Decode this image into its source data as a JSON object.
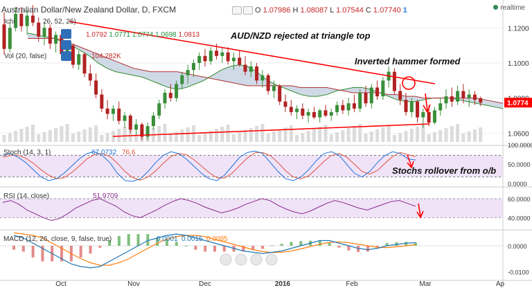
{
  "header": {
    "symbol_line": "Australian Dollar/New Zealand Dollar, D, FXCM",
    "o_label": "O",
    "o_value": "1.07986",
    "h_label": "H",
    "h_value": "1.08087",
    "l_label": "L",
    "l_value": "1.07544",
    "c_label": "C",
    "c_value": "1.07740",
    "badge": "1",
    "ichimoku_label": "Ichi",
    "ichimoku_params": "26, 52, 26)",
    "ichimoku_values": [
      "1.0792",
      "1.0771",
      "1.0774",
      "1.0698",
      "1.0813"
    ],
    "volume_label": "Vol (20, false)",
    "volume_value": "104.282K",
    "realtime": "realtime"
  },
  "annotations": {
    "title": "AUD/NZD rejected at triangle top",
    "hammer": "Inverted hammer formed",
    "stochs": "Stochs rollover from o/b"
  },
  "colors": {
    "up": "#3a8f3a",
    "down": "#b22222",
    "annotation": "#ff0000",
    "cloud_fill": "#c8d3e3",
    "stoch_k": "#1e6fd9",
    "stoch_d": "#e0523a",
    "rsi": "#8a2a8a",
    "macd": "#1f77b4",
    "signal": "#ff7f0e",
    "panel_fill": "#ead7f5"
  },
  "chart_data": {
    "type": "candlestick",
    "x_tick_labels": [
      "Oct",
      "Nov",
      "Dec",
      "2016",
      "Feb",
      "Mar",
      "Ap"
    ],
    "price_axis": [
      1.12,
      1.1,
      1.08,
      1.06
    ],
    "last_price": "1.0774",
    "ohlc": [
      [
        1.122,
        1.129,
        1.105,
        1.108
      ],
      [
        1.108,
        1.123,
        1.106,
        1.12
      ],
      [
        1.12,
        1.132,
        1.118,
        1.128
      ],
      [
        1.128,
        1.132,
        1.118,
        1.121
      ],
      [
        1.121,
        1.13,
        1.116,
        1.127
      ],
      [
        1.127,
        1.133,
        1.121,
        1.123
      ],
      [
        1.123,
        1.126,
        1.112,
        1.115
      ],
      [
        1.115,
        1.123,
        1.11,
        1.12
      ],
      [
        1.12,
        1.122,
        1.108,
        1.111
      ],
      [
        1.111,
        1.118,
        1.106,
        1.116
      ],
      [
        1.116,
        1.117,
        1.103,
        1.105
      ],
      [
        1.105,
        1.112,
        1.102,
        1.11
      ],
      [
        1.11,
        1.111,
        1.097,
        1.099
      ],
      [
        1.099,
        1.107,
        1.096,
        1.105
      ],
      [
        1.105,
        1.106,
        1.092,
        1.094
      ],
      [
        1.094,
        1.099,
        1.087,
        1.09
      ],
      [
        1.09,
        1.094,
        1.08,
        1.082
      ],
      [
        1.082,
        1.085,
        1.072,
        1.074
      ],
      [
        1.074,
        1.079,
        1.068,
        1.071
      ],
      [
        1.071,
        1.076,
        1.067,
        1.074
      ],
      [
        1.074,
        1.078,
        1.065,
        1.067
      ],
      [
        1.067,
        1.072,
        1.063,
        1.07
      ],
      [
        1.07,
        1.071,
        1.06,
        1.062
      ],
      [
        1.062,
        1.068,
        1.059,
        1.065
      ],
      [
        1.065,
        1.066,
        1.056,
        1.058
      ],
      [
        1.058,
        1.066,
        1.056,
        1.064
      ],
      [
        1.064,
        1.072,
        1.062,
        1.07
      ],
      [
        1.07,
        1.079,
        1.068,
        1.077
      ],
      [
        1.077,
        1.085,
        1.074,
        1.083
      ],
      [
        1.083,
        1.088,
        1.078,
        1.08
      ],
      [
        1.08,
        1.09,
        1.078,
        1.088
      ],
      [
        1.088,
        1.095,
        1.085,
        1.093
      ],
      [
        1.093,
        1.099,
        1.088,
        1.096
      ],
      [
        1.096,
        1.102,
        1.092,
        1.1
      ],
      [
        1.1,
        1.106,
        1.096,
        1.104
      ],
      [
        1.104,
        1.108,
        1.098,
        1.101
      ],
      [
        1.101,
        1.109,
        1.099,
        1.107
      ],
      [
        1.107,
        1.111,
        1.102,
        1.104
      ],
      [
        1.104,
        1.109,
        1.1,
        1.106
      ],
      [
        1.106,
        1.109,
        1.099,
        1.101
      ],
      [
        1.101,
        1.106,
        1.096,
        1.103
      ],
      [
        1.103,
        1.107,
        1.098,
        1.099
      ],
      [
        1.099,
        1.104,
        1.093,
        1.095
      ],
      [
        1.095,
        1.101,
        1.092,
        1.098
      ],
      [
        1.098,
        1.1,
        1.088,
        1.09
      ],
      [
        1.09,
        1.096,
        1.086,
        1.093
      ],
      [
        1.093,
        1.094,
        1.082,
        1.084
      ],
      [
        1.084,
        1.09,
        1.08,
        1.087
      ],
      [
        1.087,
        1.088,
        1.076,
        1.078
      ],
      [
        1.078,
        1.082,
        1.072,
        1.075
      ],
      [
        1.075,
        1.079,
        1.07,
        1.072
      ],
      [
        1.072,
        1.076,
        1.068,
        1.074
      ],
      [
        1.074,
        1.077,
        1.068,
        1.07
      ],
      [
        1.07,
        1.074,
        1.066,
        1.072
      ],
      [
        1.072,
        1.075,
        1.068,
        1.069
      ],
      [
        1.069,
        1.074,
        1.066,
        1.073
      ],
      [
        1.073,
        1.076,
        1.069,
        1.07
      ],
      [
        1.07,
        1.074,
        1.067,
        1.072
      ],
      [
        1.072,
        1.078,
        1.07,
        1.076
      ],
      [
        1.076,
        1.079,
        1.071,
        1.073
      ],
      [
        1.073,
        1.08,
        1.07,
        1.077
      ],
      [
        1.077,
        1.082,
        1.072,
        1.074
      ],
      [
        1.074,
        1.085,
        1.072,
        1.083
      ],
      [
        1.083,
        1.087,
        1.075,
        1.077
      ],
      [
        1.077,
        1.088,
        1.074,
        1.086
      ],
      [
        1.086,
        1.09,
        1.079,
        1.081
      ],
      [
        1.081,
        1.092,
        1.079,
        1.09
      ],
      [
        1.09,
        1.098,
        1.086,
        1.095
      ],
      [
        1.095,
        1.097,
        1.082,
        1.084
      ],
      [
        1.084,
        1.088,
        1.076,
        1.079
      ],
      [
        1.079,
        1.083,
        1.07,
        1.072
      ],
      [
        1.072,
        1.08,
        1.069,
        1.078
      ],
      [
        1.078,
        1.079,
        1.066,
        1.069
      ],
      [
        1.069,
        1.074,
        1.063,
        1.072
      ],
      [
        1.072,
        1.076,
        1.064,
        1.066
      ],
      [
        1.066,
        1.075,
        1.065,
        1.073
      ],
      [
        1.073,
        1.08,
        1.07,
        1.077
      ],
      [
        1.077,
        1.085,
        1.074,
        1.081
      ],
      [
        1.081,
        1.086,
        1.075,
        1.078
      ],
      [
        1.078,
        1.087,
        1.076,
        1.084
      ],
      [
        1.084,
        1.088,
        1.077,
        1.08
      ],
      [
        1.08,
        1.085,
        1.075,
        1.082
      ],
      [
        1.082,
        1.084,
        1.076,
        1.079
      ],
      [
        1.0799,
        1.0809,
        1.0754,
        1.0774
      ]
    ],
    "kumo_span_a": [
      1.117,
      1.116,
      1.115,
      1.114,
      1.112,
      1.11,
      1.107,
      1.104,
      1.1,
      1.097,
      1.095,
      1.094,
      1.093,
      1.092,
      1.09,
      1.088,
      1.086,
      1.085,
      1.086,
      1.088,
      1.09,
      1.093,
      1.096,
      1.098,
      1.099,
      1.098,
      1.095,
      1.091,
      1.088,
      1.086,
      1.084,
      1.082,
      1.081,
      1.081,
      1.082,
      1.084,
      1.085,
      1.086,
      1.086,
      1.085,
      1.083,
      1.081,
      1.079,
      1.078,
      1.078,
      1.079,
      1.08,
      1.08,
      1.08,
      1.079,
      1.078,
      1.077,
      1.076,
      1.075,
      1.074
    ],
    "kumo_span_b": [
      1.114,
      1.114,
      1.114,
      1.114,
      1.113,
      1.111,
      1.109,
      1.107,
      1.105,
      1.103,
      1.101,
      1.099,
      1.097,
      1.096,
      1.095,
      1.095,
      1.095,
      1.095,
      1.094,
      1.093,
      1.092,
      1.091,
      1.09,
      1.089,
      1.088,
      1.087,
      1.087,
      1.087,
      1.087,
      1.087,
      1.087,
      1.086,
      1.086,
      1.086,
      1.086,
      1.085,
      1.084,
      1.083,
      1.083,
      1.083,
      1.083,
      1.082,
      1.082,
      1.081,
      1.081,
      1.08,
      1.08,
      1.08,
      1.08,
      1.08,
      1.08,
      1.08,
      1.079,
      1.078,
      1.077
    ],
    "stoch": {
      "label": "Stoch (14, 3, 1)",
      "k_value": "67.0732",
      "d_value": "76.6",
      "axis": [
        "100.0000",
        "50.0000",
        "0.0000"
      ],
      "k": [
        80,
        85,
        75,
        60,
        40,
        20,
        10,
        15,
        30,
        50,
        70,
        85,
        90,
        80,
        60,
        30,
        10,
        8,
        15,
        35,
        60,
        80,
        90,
        85,
        70,
        50,
        30,
        15,
        10,
        25,
        50,
        75,
        88,
        92,
        85,
        60,
        35,
        15,
        10,
        20,
        40,
        65,
        85,
        90,
        80,
        55,
        30,
        20,
        35,
        60,
        80,
        90,
        85,
        70,
        67
      ],
      "d": [
        75,
        80,
        80,
        72,
        58,
        40,
        25,
        15,
        18,
        32,
        50,
        70,
        82,
        85,
        77,
        58,
        35,
        18,
        11,
        20,
        37,
        58,
        77,
        85,
        82,
        68,
        50,
        32,
        18,
        17,
        30,
        52,
        73,
        87,
        88,
        79,
        60,
        37,
        20,
        15,
        23,
        42,
        63,
        80,
        85,
        75,
        55,
        35,
        28,
        38,
        58,
        77,
        88,
        82,
        77
      ]
    },
    "rsi": {
      "label": "RSI (14, close)",
      "value": "51.9709",
      "axis": [
        "60.0000",
        "40.0000"
      ],
      "values": [
        56,
        58,
        54,
        48,
        44,
        40,
        37,
        39,
        44,
        50,
        54,
        58,
        60,
        56,
        52,
        46,
        42,
        40,
        44,
        48,
        53,
        57,
        60,
        58,
        55,
        51,
        48,
        45,
        47,
        50,
        54,
        57,
        60,
        58,
        53,
        49,
        46,
        44,
        47,
        51,
        55,
        58,
        56,
        53,
        50,
        48,
        51,
        54,
        57,
        58,
        55,
        52
      ]
    },
    "macd": {
      "label": "MACD (12, 26, close, 9, false, true)",
      "values_text": [
        "0.0001",
        "0.0015",
        "0.0085"
      ],
      "axis": [
        "0.0000",
        "-0.0100"
      ],
      "macd": [
        0.004,
        0.003,
        0.001,
        -0.001,
        -0.003,
        -0.005,
        -0.007,
        -0.008,
        -0.0085,
        -0.008,
        -0.006,
        -0.004,
        -0.002,
        0.0,
        0.002,
        0.003,
        0.004,
        0.0045,
        0.004,
        0.003,
        0.002,
        0.001,
        0.0,
        -0.001,
        -0.002,
        -0.0025,
        -0.003,
        -0.0025,
        -0.002,
        -0.001,
        0.0,
        0.001,
        0.002,
        0.002,
        0.001,
        0.0,
        -0.001,
        -0.0015,
        -0.001,
        0.0,
        0.0005,
        0.001,
        0.0012
      ],
      "signal": [
        0.005,
        0.0045,
        0.004,
        0.003,
        0.001,
        -0.001,
        -0.003,
        -0.005,
        -0.0065,
        -0.0075,
        -0.0075,
        -0.0065,
        -0.005,
        -0.003,
        -0.001,
        0.001,
        0.0025,
        0.0035,
        0.004,
        0.004,
        0.0035,
        0.0025,
        0.0015,
        0.0005,
        -0.0005,
        -0.0015,
        -0.0022,
        -0.0026,
        -0.0025,
        -0.002,
        -0.0012,
        -0.0003,
        0.0006,
        0.0013,
        0.0015,
        0.0012,
        0.0006,
        0.0,
        -0.0006,
        -0.0007,
        -0.0004,
        0.0,
        0.0004
      ]
    }
  }
}
